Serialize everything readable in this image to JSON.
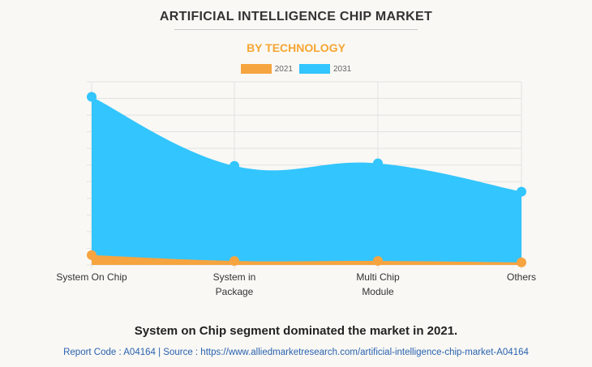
{
  "title": "ARTIFICIAL INTELLIGENCE CHIP MARKET",
  "subtitle": "BY TECHNOLOGY",
  "footer": "System on Chip segment dominated the market in 2021.",
  "source": "Report Code : A04164  |  Source : https://www.alliedmarketresearch.com/artificial-intelligence-chip-market-A04164",
  "chart_data": {
    "type": "area",
    "categories": [
      "System On Chip",
      "System in Package",
      "Multi Chip Module",
      "Others"
    ],
    "category_lines": [
      [
        "System On Chip"
      ],
      [
        "System in",
        "Package"
      ],
      [
        "Multi Chip",
        "Module"
      ],
      [
        "Others"
      ]
    ],
    "series": [
      {
        "name": "2021",
        "color": "#f6a440",
        "values": [
          5.9,
          2.4,
          2.4,
          1.5
        ]
      },
      {
        "name": "2031",
        "color": "#33c5fd",
        "values": [
          101,
          59.5,
          61,
          44
        ]
      }
    ],
    "ylim": [
      0,
      110
    ],
    "y_ticks_shown": false,
    "grid": true,
    "legend": "top"
  }
}
